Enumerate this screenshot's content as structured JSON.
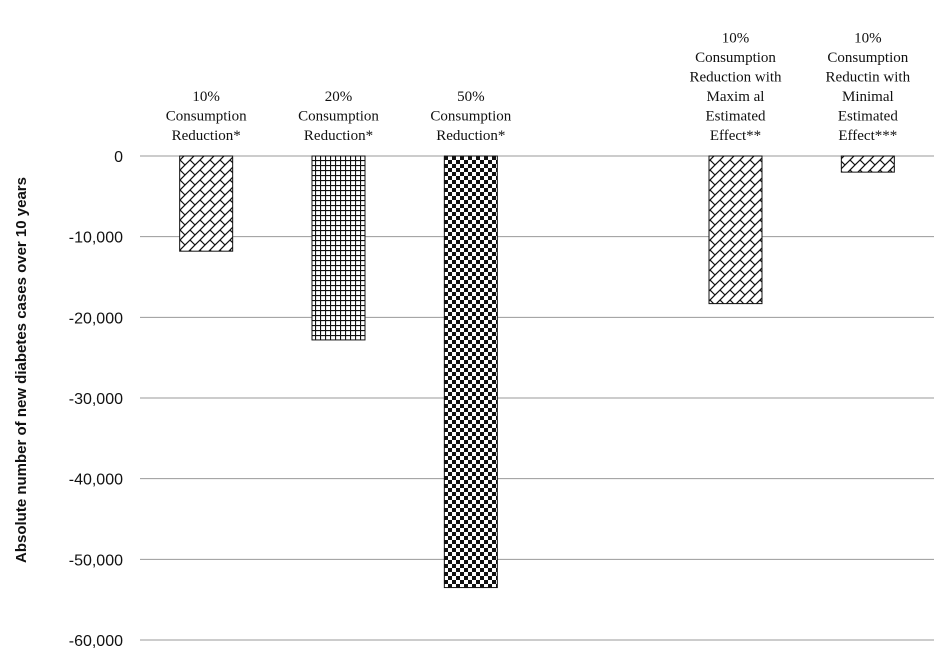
{
  "chart_data": {
    "type": "bar",
    "ylabel": "Absolute  number of new diabetes cases   over 10 years",
    "ylim": [
      -60000,
      0
    ],
    "yticks": [
      0,
      -10000,
      -20000,
      -30000,
      -40000,
      -50000,
      -60000
    ],
    "ytick_labels": [
      "0",
      "-10,000",
      "-20,000",
      "-30,000",
      "-40,000",
      "-50,000",
      "-60,000"
    ],
    "grid": true,
    "categories": [
      [
        "10%",
        "Consumption",
        "Reduction*"
      ],
      [
        "20%",
        "Consumption",
        "Reduction*"
      ],
      [
        "50%",
        "Consumption",
        "Reduction*"
      ],
      [],
      [
        "10%",
        "Consumption",
        "Reduction with",
        "Maxim al",
        "Estimated",
        "Effect**"
      ],
      [
        "10%",
        "Consumption",
        "Reductin with",
        "Minimal",
        "Estimated",
        "Effect***"
      ]
    ],
    "values": [
      -11800,
      -22800,
      -53500,
      null,
      -18300,
      -2000
    ],
    "patterns": [
      "diagonal-brick",
      "grid",
      "checkerboard",
      null,
      "diagonal-brick",
      "diagonal-brick"
    ]
  }
}
